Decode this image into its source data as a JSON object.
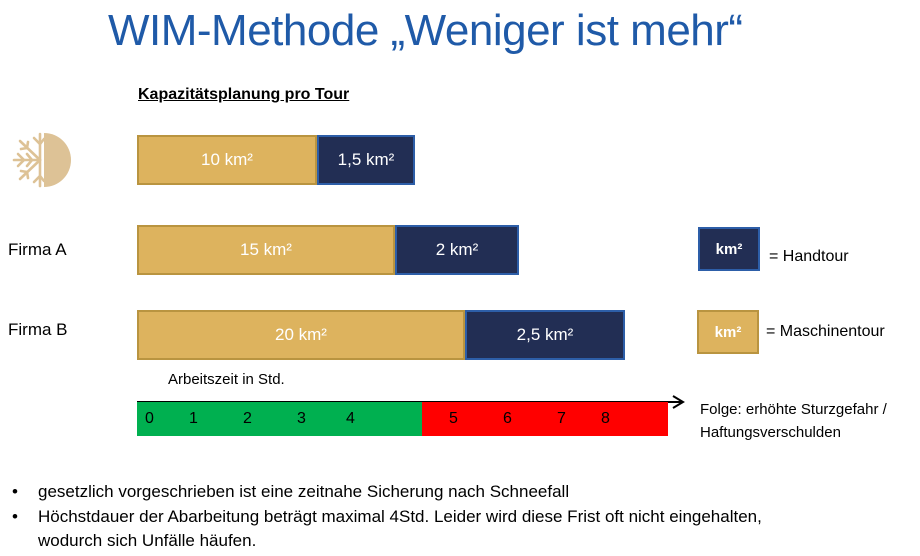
{
  "title": "WIM-Methode „Weniger ist mehr“",
  "subtitle": "Kapazitätsplanung  pro Tour",
  "rows": [
    {
      "label": "",
      "machine": "10 km²",
      "hand": "1,5 km²"
    },
    {
      "label": "Firma A",
      "machine": "15 km²",
      "hand": "2 km²"
    },
    {
      "label": "Firma B",
      "machine": "20 km²",
      "hand": "2,5 km²"
    }
  ],
  "legend": {
    "hand_box": "km²",
    "hand_text": "= Handtour",
    "machine_box": "km²",
    "machine_text": "= Maschinentour"
  },
  "time_axis": {
    "label": "Arbeitszeit in Std.",
    "ticks": [
      "0",
      "1",
      "2",
      "3",
      "4",
      "5",
      "6",
      "7",
      "8"
    ]
  },
  "consequence": {
    "line1": "Folge: erhöhte Sturzgefahr /",
    "line2": "Haftungsverschulden"
  },
  "bullets": [
    {
      "marker": "•",
      "text": "gesetzlich vorgeschrieben ist eine zeitnahe Sicherung nach Schneefall"
    },
    {
      "marker": "•",
      "text": "Höchstdauer der Abarbeitung beträgt maximal 4Std. Leider wird diese Frist oft nicht eingehalten, wodurch sich Unfälle häufen."
    }
  ],
  "colors": {
    "title": "#1f5aa8",
    "machine": "#ddb35e",
    "hand": "#222e54",
    "ok": "#00b050",
    "late": "#ff0000"
  },
  "icon": "snowflake-sun-icon"
}
